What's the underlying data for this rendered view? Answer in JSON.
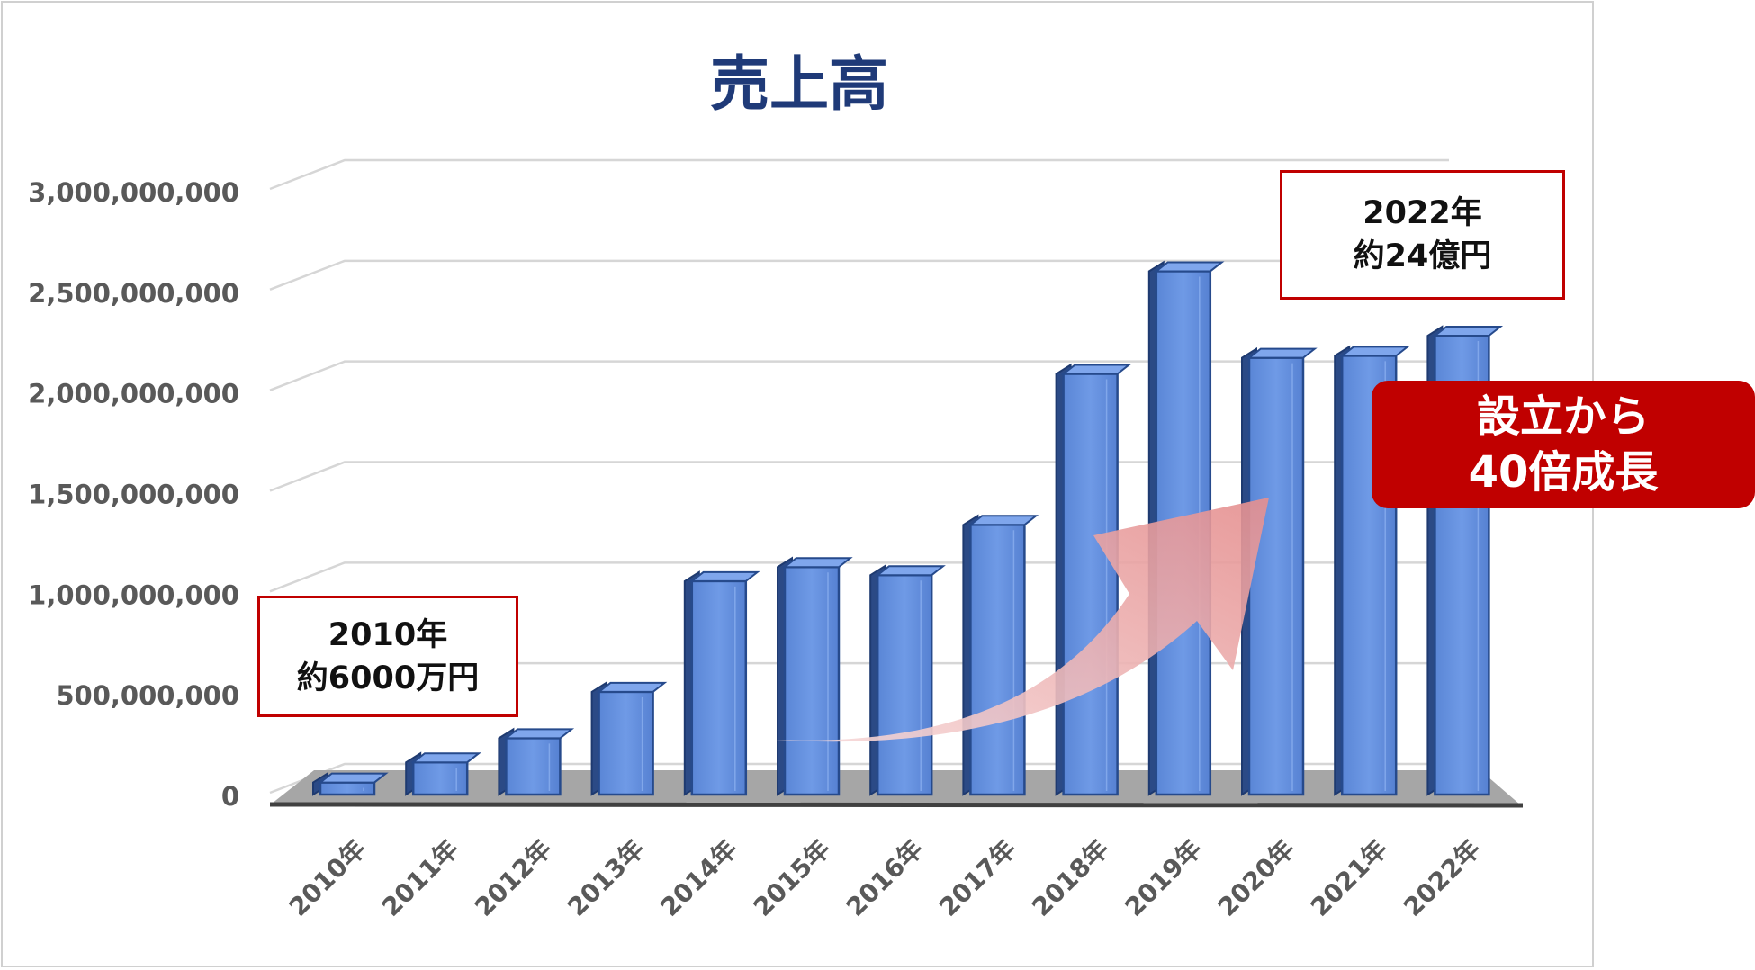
{
  "chart_data": {
    "type": "bar",
    "title": "売上高",
    "categories": [
      "2010年",
      "2011年",
      "2012年",
      "2013年",
      "2014年",
      "2015年",
      "2016年",
      "2017年",
      "2018年",
      "2019年",
      "2020年",
      "2021年",
      "2022年"
    ],
    "values": [
      60000000,
      160000000,
      280000000,
      510000000,
      1060000000,
      1130000000,
      1090000000,
      1340000000,
      2090000000,
      2600000000,
      2170000000,
      2180000000,
      2280000000
    ],
    "ylim": [
      0,
      3000000000
    ],
    "yticks": [
      0,
      500000000,
      1000000000,
      1500000000,
      2000000000,
      2500000000,
      3000000000
    ],
    "ytick_labels": [
      "0",
      "500,000,000",
      "1,000,000,000",
      "1,500,000,000",
      "2,000,000,000",
      "2,500,000,000",
      "3,000,000,000"
    ],
    "grid": true,
    "bar_color": "#4a78c8",
    "annotations": {
      "start": {
        "line1": "2010年",
        "line2": "約6000万円"
      },
      "end": {
        "line1": "2022年",
        "line2": "約24億円"
      },
      "growth": {
        "line1": "設立から",
        "line2": "40倍成長"
      }
    }
  },
  "colors": {
    "title": "#1f3a78",
    "callout_border": "#c00000",
    "badge_fill": "#c00000",
    "arrow": "#e89898"
  }
}
